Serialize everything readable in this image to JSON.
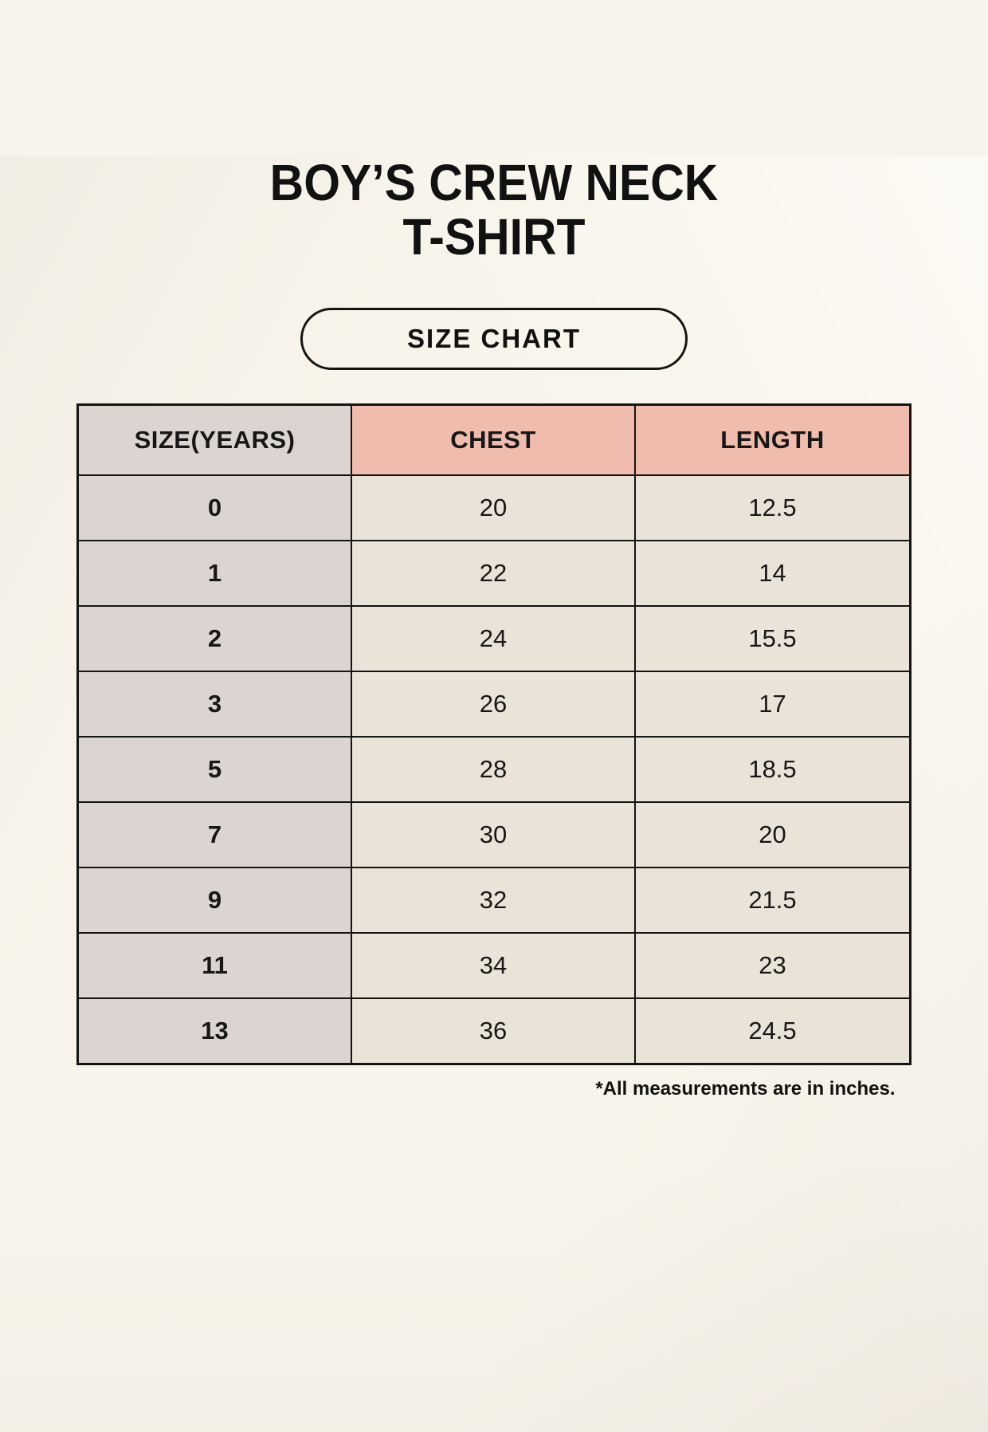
{
  "page": {
    "title_line1": "BOY’S CREW NECK",
    "title_line2": "T-SHIRT",
    "badge_label": "SIZE CHART",
    "footnote": "*All measurements are in inches."
  },
  "colors": {
    "background": "#f8f4eb",
    "cell_gray": "#dcd4d0",
    "header_pink": "#efbcad",
    "cell_beige": "#eae3d8",
    "border": "#141414",
    "text": "#171717"
  },
  "chart_data": {
    "type": "table",
    "title": "BOY’S CREW NECK T-SHIRT — SIZE CHART",
    "columns": [
      "SIZE(YEARS)",
      "CHEST",
      "LENGTH"
    ],
    "rows": [
      [
        "0",
        "20",
        "12.5"
      ],
      [
        "1",
        "22",
        "14"
      ],
      [
        "2",
        "24",
        "15.5"
      ],
      [
        "3",
        "26",
        "17"
      ],
      [
        "5",
        "28",
        "18.5"
      ],
      [
        "7",
        "30",
        "20"
      ],
      [
        "9",
        "32",
        "21.5"
      ],
      [
        "11",
        "34",
        "23"
      ],
      [
        "13",
        "36",
        "24.5"
      ]
    ],
    "units": "inches",
    "notes": "*All measurements are in inches."
  }
}
